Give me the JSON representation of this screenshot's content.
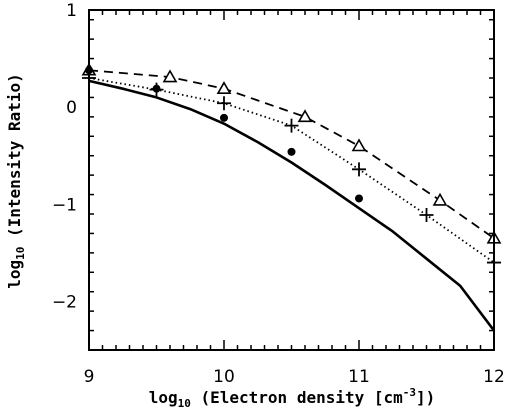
{
  "chart_data": {
    "type": "line",
    "title": "",
    "xlabel": {
      "base": "log",
      "sub": "10",
      "text": " (Electron density [cm",
      "sup": "-3",
      "close": "])"
    },
    "ylabel": {
      "base": "log",
      "sub": "10",
      "text": " (Intensity Ratio)"
    },
    "xlim": [
      9,
      12
    ],
    "ylim": [
      -2.5,
      1
    ],
    "x_ticks": [
      "9",
      "10",
      "11",
      "12"
    ],
    "y_ticks": [
      "1",
      "0",
      "−1",
      "−2"
    ],
    "grid": false,
    "legend": "none",
    "series": [
      {
        "style": "solid",
        "color": "#000000",
        "x": [
          9.0,
          9.25,
          9.5,
          9.75,
          10.0,
          10.25,
          10.5,
          10.75,
          11.0,
          11.25,
          11.5,
          11.75,
          12.0
        ],
        "y": [
          0.27,
          0.19,
          0.1,
          -0.02,
          -0.17,
          -0.36,
          -0.57,
          -0.8,
          -1.04,
          -1.28,
          -1.56,
          -1.84,
          -2.3
        ]
      },
      {
        "style": "dashed",
        "marker": "triangle",
        "color": "#000000",
        "x": [
          9.0,
          9.6,
          10.0,
          10.6,
          11.0,
          11.6,
          12.0
        ],
        "y": [
          0.38,
          0.31,
          0.19,
          -0.1,
          -0.4,
          -0.96,
          -1.35
        ]
      },
      {
        "style": "dotted",
        "marker": "plus",
        "color": "#000000",
        "x": [
          9.0,
          9.5,
          10.0,
          10.5,
          11.0,
          11.5,
          12.0
        ],
        "y": [
          0.3,
          0.18,
          0.04,
          -0.19,
          -0.64,
          -1.11,
          -1.6
        ]
      },
      {
        "style": "none",
        "marker": "dot",
        "color": "#000000",
        "x": [
          9.0,
          9.5,
          10.0,
          10.5,
          11.0
        ],
        "y": [
          0.38,
          0.19,
          -0.11,
          -0.46,
          -0.94
        ]
      }
    ]
  }
}
